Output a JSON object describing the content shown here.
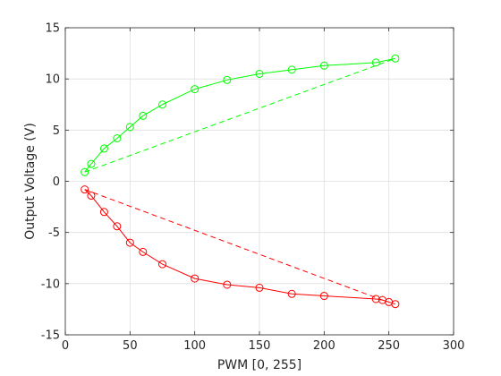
{
  "chart_data": {
    "type": "line",
    "title": "",
    "xlabel": "PWM [0, 255]",
    "ylabel": "Output Voltage (V)",
    "xlim": [
      0,
      300
    ],
    "ylim": [
      -15,
      15
    ],
    "x_ticks": [
      0,
      50,
      100,
      150,
      200,
      250,
      300
    ],
    "y_ticks": [
      -15,
      -10,
      -5,
      0,
      5,
      10,
      15
    ],
    "grid": true,
    "legend": "none",
    "series": [
      {
        "color": "#00ff00",
        "style": "solid",
        "marker": "circle",
        "x": [
          15,
          20,
          30,
          40,
          50,
          60,
          75,
          100,
          125,
          150,
          175,
          200,
          240,
          255
        ],
        "y": [
          0.9,
          1.7,
          3.2,
          4.2,
          5.3,
          6.4,
          7.5,
          9.0,
          9.9,
          10.5,
          10.9,
          11.3,
          11.6,
          12.0
        ]
      },
      {
        "color": "#00ff00",
        "style": "dashed",
        "marker": "none",
        "x": [
          15,
          255
        ],
        "y": [
          0.9,
          12.0
        ]
      },
      {
        "color": "#ff0000",
        "style": "solid",
        "marker": "circle",
        "x": [
          15,
          20,
          30,
          40,
          50,
          60,
          75,
          100,
          125,
          150,
          175,
          200,
          240,
          245,
          250,
          255
        ],
        "y": [
          -0.8,
          -1.4,
          -3.0,
          -4.4,
          -6.0,
          -6.9,
          -8.1,
          -9.5,
          -10.1,
          -10.4,
          -11.0,
          -11.2,
          -11.5,
          -11.6,
          -11.8,
          -12.0
        ]
      },
      {
        "color": "#ff0000",
        "style": "dashed",
        "marker": "none",
        "x": [
          15,
          245
        ],
        "y": [
          -0.8,
          -11.6
        ]
      }
    ]
  }
}
